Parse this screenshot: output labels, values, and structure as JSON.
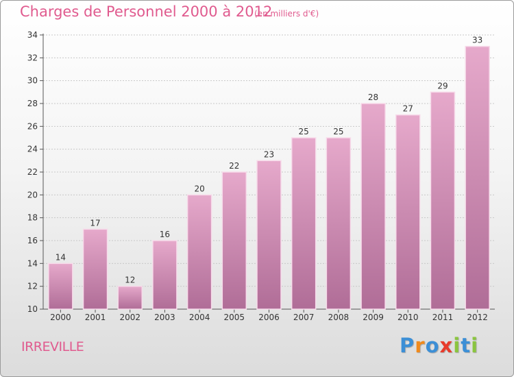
{
  "header": {
    "title": "Charges de Personnel 2000 à 2012",
    "subtitle": "(en milliers d'€)"
  },
  "footer": {
    "commune": "IRREVILLE",
    "logo": [
      "P",
      "r",
      "o",
      "x",
      "i",
      "t",
      "i"
    ]
  },
  "colors": {
    "title": "#e05a8e",
    "bar_top": "#e6a9cb",
    "bar_bottom": "#b06d97",
    "bar_edge": "#f7dbea",
    "logo": [
      "#3c8fd6",
      "#f08a1c",
      "#3c8fd6",
      "#e83b2b",
      "#8bc53f",
      "#3c8fd6",
      "#8bc53f"
    ]
  },
  "chart_data": {
    "type": "bar",
    "categories": [
      "2000",
      "2001",
      "2002",
      "2003",
      "2004",
      "2005",
      "2006",
      "2007",
      "2008",
      "2009",
      "2010",
      "2011",
      "2012"
    ],
    "values": [
      14,
      17,
      12,
      16,
      20,
      22,
      23,
      25,
      25,
      28,
      27,
      29,
      33
    ],
    "data_labels": [
      "14",
      "17",
      "12",
      "16",
      "20",
      "22",
      "23",
      "25",
      "25",
      "28",
      "27",
      "29",
      "33"
    ],
    "ylim": [
      10,
      34
    ],
    "yticks": [
      "10",
      "12",
      "14",
      "16",
      "18",
      "20",
      "22",
      "24",
      "26",
      "28",
      "30",
      "32",
      "34"
    ],
    "ytick_values": [
      10,
      12,
      14,
      16,
      18,
      20,
      22,
      24,
      26,
      28,
      30,
      32,
      34
    ],
    "grid": true,
    "legend": "none"
  }
}
